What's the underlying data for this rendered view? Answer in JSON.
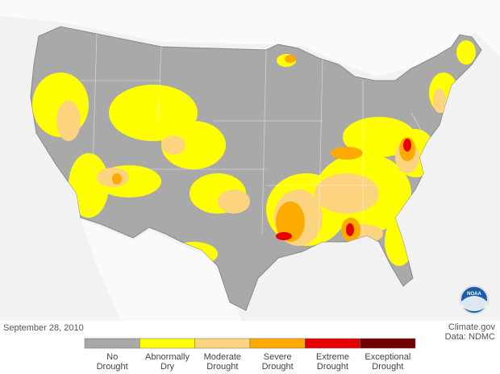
{
  "date": "September 28, 2010",
  "credit": {
    "source": "Climate.gov",
    "data": "Data: NDMC"
  },
  "logo": "NOAA",
  "legend": [
    {
      "lines": [
        "No",
        "Drought"
      ],
      "color": "#a9a9a9"
    },
    {
      "lines": [
        "Abnormally",
        "Dry"
      ],
      "color": "#ffff00"
    },
    {
      "lines": [
        "Moderate",
        "Drought"
      ],
      "color": "#fcd37f"
    },
    {
      "lines": [
        "Severe",
        "Drought"
      ],
      "color": "#ffaa00"
    },
    {
      "lines": [
        "Extreme",
        "Drought"
      ],
      "color": "#e60000"
    },
    {
      "lines": [
        "Exceptional",
        "Drought"
      ],
      "color": "#730000"
    }
  ]
}
